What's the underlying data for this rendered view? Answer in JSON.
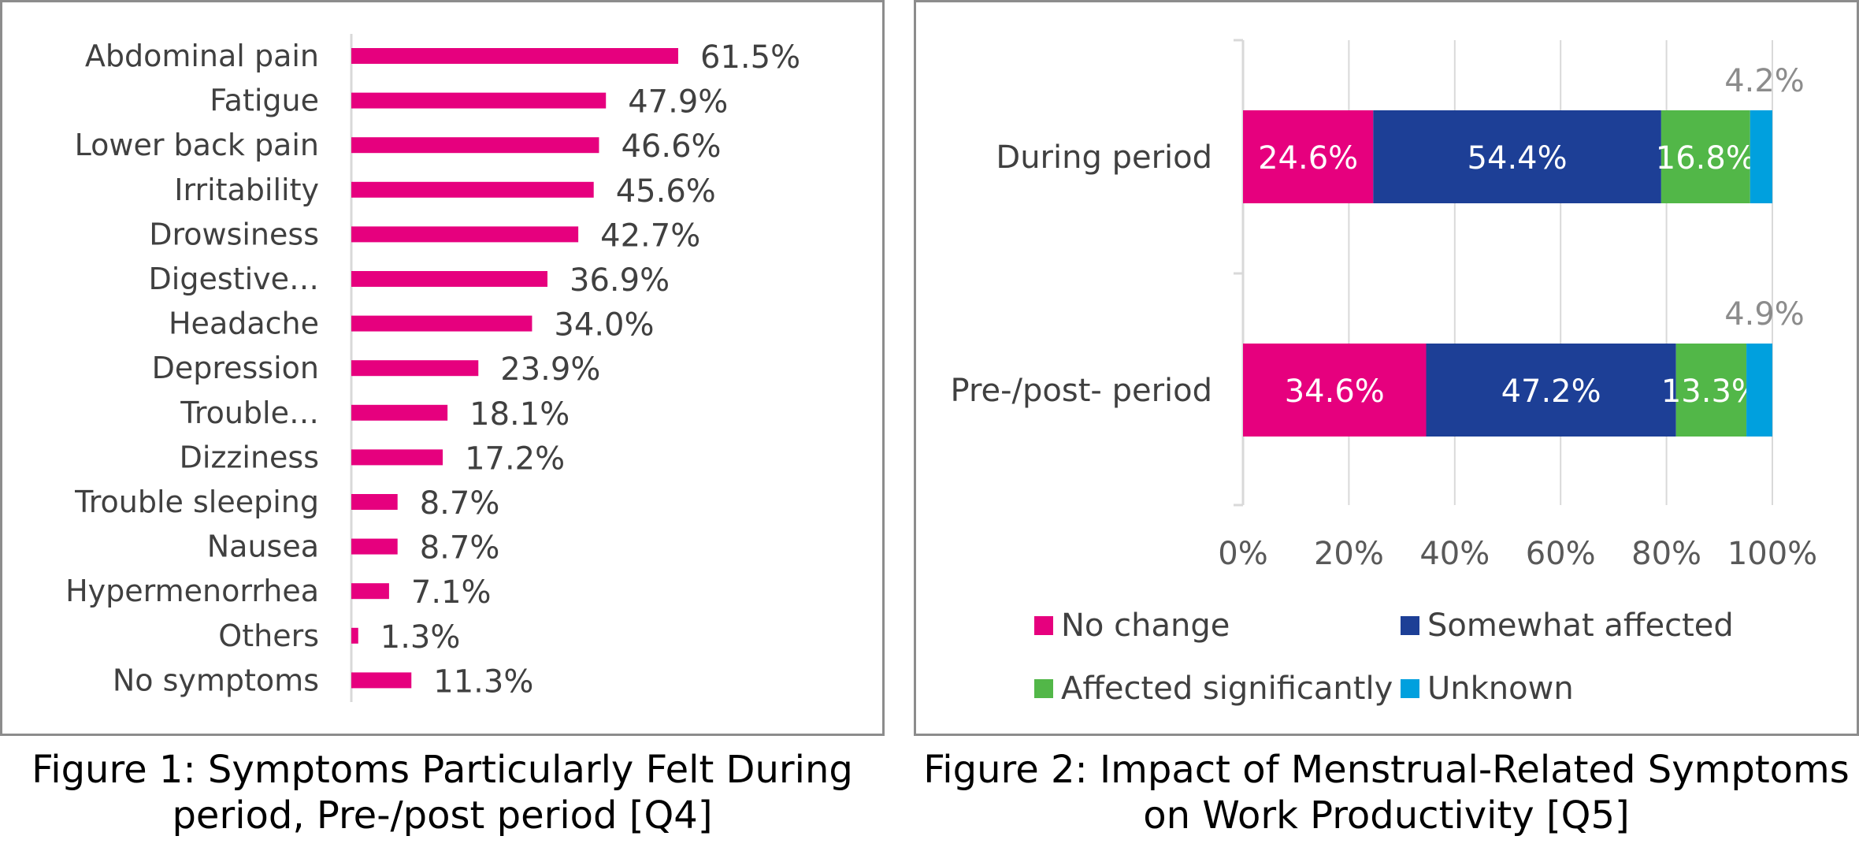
{
  "figure1": {
    "caption": "Figure 1: Symptoms Particularly Felt During period, Pre-/post period [Q4]"
  },
  "figure2": {
    "caption": "Figure 2: Impact of Menstrual-Related Symptoms on Work Productivity [Q5]"
  },
  "chart_data": [
    {
      "type": "bar",
      "orientation": "horizontal",
      "title": "",
      "categories": [
        "Abdominal pain",
        "Fatigue",
        "Lower back pain",
        "Irritability",
        "Drowsiness",
        "Digestive…",
        "Headache",
        "Depression",
        "Trouble…",
        "Dizziness",
        "Trouble sleeping",
        "Nausea",
        "Hypermenorrhea",
        "Others",
        "No symptoms"
      ],
      "values": [
        61.5,
        47.9,
        46.6,
        45.6,
        42.7,
        36.9,
        34.0,
        23.9,
        18.1,
        17.2,
        8.7,
        8.7,
        7.1,
        1.3,
        11.3
      ],
      "value_labels": [
        "61.5%",
        "47.9%",
        "46.6%",
        "45.6%",
        "42.7%",
        "36.9%",
        "34.0%",
        "23.9%",
        "18.1%",
        "17.2%",
        "8.7%",
        "8.7%",
        "7.1%",
        "1.3%",
        "11.3%"
      ],
      "unit": "%",
      "xlim": [
        0,
        100
      ],
      "color": "#E6007E",
      "grid": false
    },
    {
      "type": "bar",
      "orientation": "horizontal",
      "stacked": "percent",
      "title": "",
      "categories": [
        "During period",
        "Pre-/post- period"
      ],
      "series": [
        {
          "name": "No change",
          "values": [
            24.6,
            34.6
          ],
          "labels": [
            "24.6%",
            "34.6%"
          ],
          "color": "#E6007E"
        },
        {
          "name": "Somewhat affected",
          "values": [
            54.4,
            47.2
          ],
          "labels": [
            "54.4%",
            "47.2%"
          ],
          "color": "#1D3F96"
        },
        {
          "name": "Affected significantly",
          "values": [
            16.8,
            13.3
          ],
          "labels": [
            "16.8%",
            "13.3%"
          ],
          "color": "#52B748"
        },
        {
          "name": "Unknown",
          "values": [
            4.2,
            4.9
          ],
          "labels": [
            "4.2%",
            "4.9%"
          ],
          "color": "#00A0DE"
        }
      ],
      "xlim": [
        0,
        100
      ],
      "xticks": [
        "0%",
        "20%",
        "40%",
        "60%",
        "80%",
        "100%"
      ],
      "grid": true,
      "legend": "bottom"
    }
  ]
}
